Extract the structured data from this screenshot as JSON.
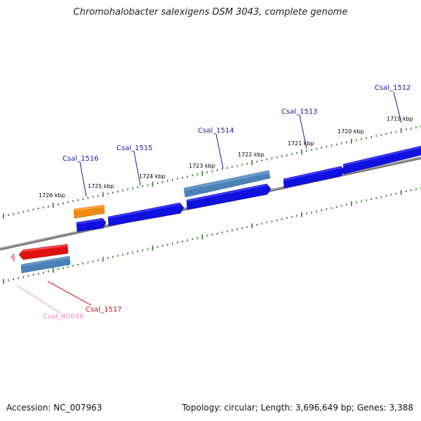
{
  "title": "Chromohalobacter salexigens DSM 3043, complete genome",
  "footer": {
    "accession": "Accession: NC_007963",
    "summary": "Topology: circular; Length: 3,696,649 bp; Genes: 3,388"
  },
  "colors": {
    "backbone": "#7f7f7f",
    "tick": "#2b7a1f",
    "cds_forward": "#1010e0",
    "cds_highlight": "#4a82b8",
    "rrna": "#f08a10",
    "cds_reverse_red": "#e01010",
    "ncrna": "#f09ac8",
    "label_blue": "#1a1a9a",
    "label_red": "#cc1010",
    "label_pink": "#e890c0"
  },
  "tick_labels": [
    "1719 kbp",
    "1720 kbp",
    "1721 kbp",
    "1722 kbp",
    "1723 kbp",
    "1724 kbp",
    "1725 kbp",
    "1726 kbp"
  ],
  "genes": [
    {
      "name": "Csal_1512",
      "color": "label_blue"
    },
    {
      "name": "Csal_1513",
      "color": "label_blue"
    },
    {
      "name": "Csal_1514",
      "color": "label_blue"
    },
    {
      "name": "Csal_1515",
      "color": "label_blue"
    },
    {
      "name": "Csal_1516",
      "color": "label_blue"
    },
    {
      "name": "Csal_1517",
      "color": "label_red"
    },
    {
      "name": "Csal_R0048",
      "color": "label_pink"
    }
  ]
}
